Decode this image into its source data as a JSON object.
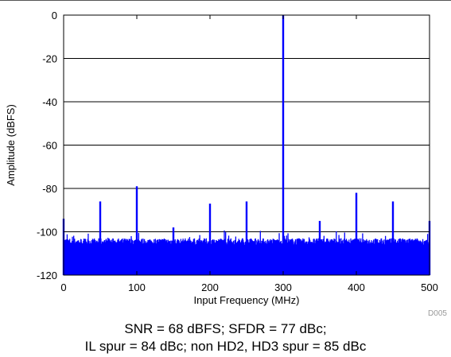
{
  "chart_data": {
    "type": "line",
    "xlabel": "Input Frequency (MHz)",
    "ylabel": "Amplitude (dBFS)",
    "xlim": [
      0,
      500
    ],
    "ylim": [
      -120,
      0
    ],
    "x_ticks": [
      "0",
      "100",
      "200",
      "300",
      "400",
      "500"
    ],
    "y_ticks": [
      "0",
      "-20",
      "-40",
      "-60",
      "-80",
      "-100",
      "-120"
    ],
    "grid": "horizontal",
    "series": [
      {
        "color": "#0000ff",
        "noise_floor_dbfs": [
          -106,
          -103
        ],
        "spurs": [
          {
            "x": 0,
            "y": -94
          },
          {
            "x": 50,
            "y": -86
          },
          {
            "x": 100,
            "y": -79
          },
          {
            "x": 150,
            "y": -98
          },
          {
            "x": 200,
            "y": -87
          },
          {
            "x": 250,
            "y": -86
          },
          {
            "x": 300,
            "y": 0
          },
          {
            "x": 350,
            "y": -95
          },
          {
            "x": 400,
            "y": -82
          },
          {
            "x": 450,
            "y": -86
          },
          {
            "x": 500,
            "y": -95
          }
        ]
      }
    ],
    "annotation": "D005"
  },
  "caption": {
    "line1": "SNR = 68 dBFS; SFDR = 77 dBc;",
    "line2": "IL spur = 84 dBc; non HD2, HD3 spur = 85 dBc"
  }
}
